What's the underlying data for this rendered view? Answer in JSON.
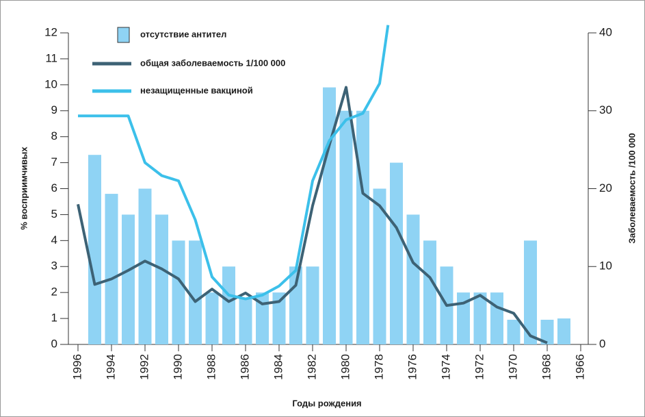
{
  "chart_data": {
    "type": "combo",
    "xlabel": "Годы рождения",
    "ylabel": "% восприимчивых",
    "y2label": "Заболеваемость /100 000",
    "xlim": [
      1996,
      1966
    ],
    "xticks": [
      1996,
      1994,
      1992,
      1990,
      1988,
      1986,
      1984,
      1982,
      1980,
      1978,
      1976,
      1974,
      1972,
      1970,
      1968,
      1966
    ],
    "ylim": [
      0,
      12
    ],
    "yticks": [
      0,
      1,
      2,
      3,
      4,
      5,
      6,
      7,
      8,
      9,
      10,
      11,
      12
    ],
    "y2lim": [
      0,
      40
    ],
    "y2ticks": [
      0,
      10,
      20,
      30,
      40
    ],
    "series": [
      {
        "name": "отсутствие антител",
        "type": "bar",
        "color": "#8fd3f4",
        "x": [
          1995,
          1994,
          1993,
          1992,
          1991,
          1990,
          1989,
          1988,
          1987,
          1986,
          1985,
          1984,
          1983,
          1982,
          1981,
          1980,
          1979,
          1978,
          1977,
          1976,
          1975,
          1974,
          1973,
          1972,
          1971,
          1970,
          1969,
          1968,
          1967
        ],
        "values": [
          7.3,
          5.8,
          5,
          6,
          5,
          4,
          4,
          2,
          3,
          1.8,
          2,
          2,
          3,
          3,
          9.9,
          9,
          9,
          6,
          7,
          5,
          4,
          3,
          2,
          2,
          2,
          0.95,
          4,
          0.95,
          1
        ]
      },
      {
        "name": "общая заболеваемость 1/100 000",
        "type": "line",
        "axis": "y2",
        "color": "#3d6275",
        "x": [
          1996,
          1995,
          1994,
          1993,
          1992,
          1991,
          1990,
          1989,
          1988,
          1987,
          1986,
          1985,
          1984,
          1983,
          1982,
          1981,
          1980,
          1979,
          1978,
          1977,
          1976,
          1975,
          1974,
          1973,
          1972,
          1971,
          1970,
          1969,
          1968
        ],
        "values": [
          18,
          7.7,
          8.4,
          9.5,
          10.7,
          9.7,
          8.4,
          5.5,
          7.1,
          5.5,
          6.6,
          5.2,
          5.5,
          7.6,
          17.8,
          25.6,
          33,
          19.4,
          17.8,
          15,
          10.5,
          8.6,
          5,
          5.3,
          6.3,
          4.8,
          4,
          1.1,
          0.2
        ]
      },
      {
        "name": "незащищенные вакциной",
        "type": "line",
        "color": "#3cc0ea",
        "x": [
          1996,
          1995,
          1994,
          1993,
          1992,
          1991,
          1990,
          1989,
          1988,
          1987,
          1986,
          1985,
          1984,
          1983,
          1982,
          1981,
          1980,
          1979,
          1978,
          1977.5
        ],
        "values": [
          8.8,
          8.8,
          8.8,
          8.8,
          7,
          6.5,
          6.3,
          4.8,
          2.6,
          1.9,
          1.75,
          1.9,
          2.25,
          2.85,
          6.3,
          7.85,
          8.65,
          8.9,
          10.05,
          12.3
        ]
      }
    ]
  }
}
